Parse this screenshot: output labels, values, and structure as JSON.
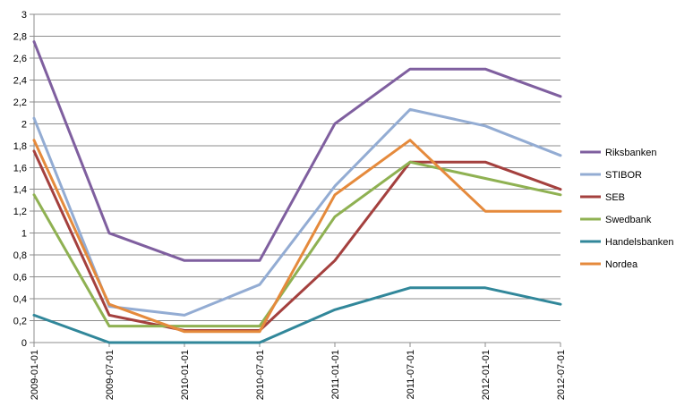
{
  "chart_data": {
    "type": "line",
    "title": "",
    "xlabel": "",
    "ylabel": "",
    "categories": [
      "2009-01-01",
      "2009-07-01",
      "2010-01-01",
      "2010-07-01",
      "2011-01-01",
      "2011-07-01",
      "2012-01-01",
      "2012-07-01"
    ],
    "ylim": [
      0,
      3
    ],
    "yticks": [
      "0",
      "0,2",
      "0,4",
      "0,6",
      "0,8",
      "1",
      "1,2",
      "1,4",
      "1,6",
      "1,8",
      "2",
      "2,2",
      "2,4",
      "2,6",
      "2,8",
      "3"
    ],
    "grid": "horizontal",
    "legend_position": "right",
    "series": [
      {
        "name": "Riksbanken",
        "color": "#7f5f9f",
        "values": [
          2.75,
          1.0,
          0.75,
          0.75,
          2.0,
          2.5,
          2.5,
          2.25
        ]
      },
      {
        "name": "STIBOR",
        "color": "#93acd3",
        "values": [
          2.05,
          0.33,
          0.25,
          0.53,
          1.43,
          2.13,
          1.98,
          1.71
        ]
      },
      {
        "name": "SEB",
        "color": "#a4403e",
        "values": [
          1.75,
          0.25,
          0.11,
          0.11,
          0.75,
          1.65,
          1.65,
          1.4
        ]
      },
      {
        "name": "Swedbank",
        "color": "#8fb152",
        "values": [
          1.35,
          0.15,
          0.15,
          0.15,
          1.15,
          1.65,
          1.5,
          1.35
        ]
      },
      {
        "name": "Handelsbanken",
        "color": "#31879a",
        "values": [
          0.25,
          0.0,
          0.0,
          0.0,
          0.3,
          0.5,
          0.5,
          0.35
        ]
      },
      {
        "name": "Nordea",
        "color": "#e58a3c",
        "values": [
          1.85,
          0.35,
          0.1,
          0.1,
          1.35,
          1.85,
          1.2,
          1.2
        ]
      }
    ]
  }
}
